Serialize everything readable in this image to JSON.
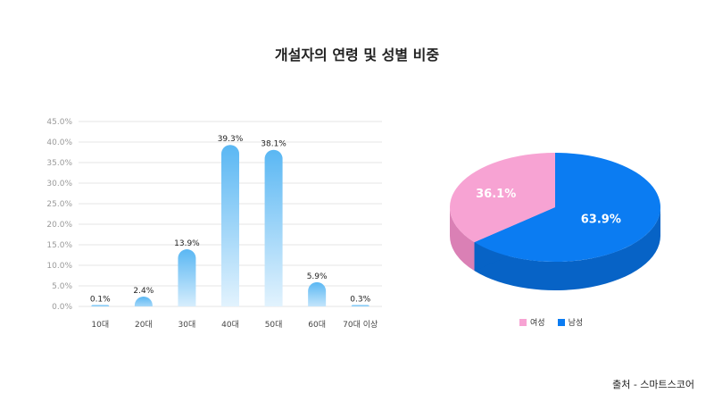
{
  "chart_title": "개설자의 연령 및 성별 비중",
  "source": "출처 - 스마트스코어",
  "chart_data": [
    {
      "type": "bar",
      "title": "",
      "categories": [
        "10대",
        "20대",
        "30대",
        "40대",
        "50대",
        "60대",
        "70대 이상"
      ],
      "values": [
        0.1,
        2.4,
        13.9,
        39.3,
        38.1,
        5.9,
        0.3
      ],
      "value_labels": [
        "0.1%",
        "2.4%",
        "13.9%",
        "39.3%",
        "38.1%",
        "5.9%",
        "0.3%"
      ],
      "ylim": [
        0,
        45
      ],
      "y_ticks": [
        "0.0%",
        "5.0%",
        "10.0%",
        "15.0%",
        "20.0%",
        "25.0%",
        "30.0%",
        "35.0%",
        "40.0%",
        "45.0%"
      ],
      "grid": true,
      "colors": {
        "bar_top": "#5ab7f3",
        "bar_bottom": "#eaf6fe"
      }
    },
    {
      "type": "pie",
      "labels": [
        "여성",
        "남성"
      ],
      "values": [
        36.1,
        63.9
      ],
      "value_labels": [
        "36.1%",
        "63.9%"
      ],
      "colors": [
        "#f7a3d3",
        "#0b7cf2"
      ],
      "side_colors": [
        "#da80b5",
        "#0763c6"
      ],
      "legend_position": "bottom"
    }
  ]
}
